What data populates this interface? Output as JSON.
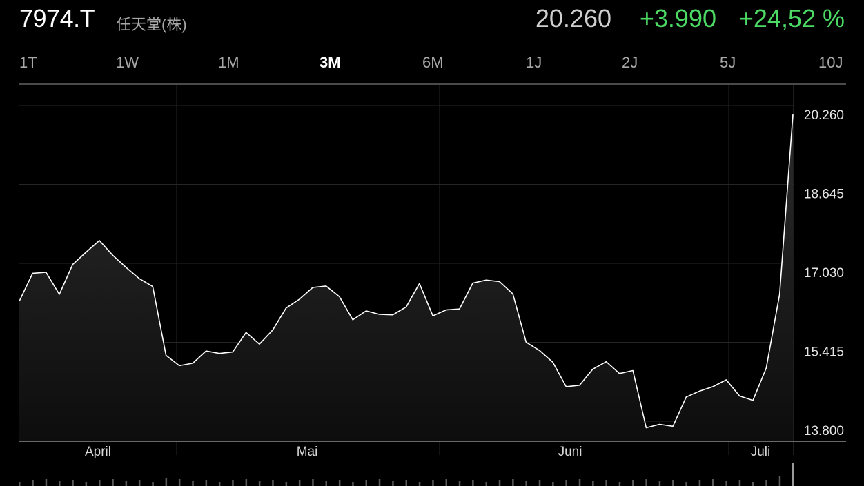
{
  "header": {
    "ticker": "7974.T",
    "company": "任天堂(株)",
    "price": "20.260",
    "change": "+3.990",
    "change_pct": "+24,52 %"
  },
  "ranges": {
    "items": [
      "1T",
      "1W",
      "1M",
      "3M",
      "6M",
      "1J",
      "2J",
      "5J",
      "10J"
    ],
    "selected": "3M"
  },
  "colors": {
    "positive": "#4cd964",
    "line": "#ffffff",
    "grid": "#262626",
    "axis": "#bdbdbd"
  },
  "chart_data": {
    "type": "area",
    "y_ticks": [
      "20.260",
      "18.645",
      "17.030",
      "15.415",
      "13.800"
    ],
    "y_tick_values": [
      20260,
      18645,
      17030,
      15415,
      13800
    ],
    "ylim": [
      13800,
      20260
    ],
    "x_labels": [
      "April",
      "Mai",
      "Juni",
      "Juli"
    ],
    "series": [
      {
        "values": [
          16440,
          17010,
          17030,
          16580,
          17190,
          17440,
          17680,
          17380,
          17130,
          16900,
          16740,
          15330,
          15120,
          15170,
          15420,
          15370,
          15400,
          15800,
          15560,
          15850,
          16300,
          16480,
          16720,
          16750,
          16530,
          16060,
          16240,
          16170,
          16160,
          16320,
          16800,
          16140,
          16260,
          16280,
          16810,
          16870,
          16840,
          16590,
          15600,
          15430,
          15190,
          14690,
          14720,
          15050,
          15200,
          14960,
          15020,
          13850,
          13920,
          13880,
          14480,
          14600,
          14690,
          14830,
          14500,
          14410,
          15070,
          16580,
          20260
        ]
      }
    ]
  }
}
